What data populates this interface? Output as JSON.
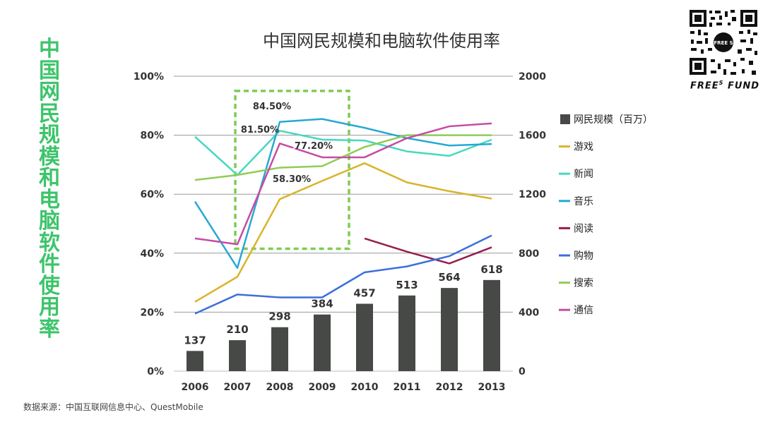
{
  "side_title": "中国网民规模和电脑软件使用率",
  "source": "数据来源：中国互联网信息中心、QuestMobile",
  "logo": {
    "badge": "FREE S",
    "brand": "FREE",
    "brand_sup": "S",
    "brand_rest": " FUND"
  },
  "chart_data": {
    "type": "bar+line",
    "title": "中国网民规模和电脑软件使用率",
    "categories": [
      "2006",
      "2007",
      "2008",
      "2009",
      "2010",
      "2011",
      "2012",
      "2013"
    ],
    "left_axis": {
      "ticks": [
        "0%",
        "20%",
        "40%",
        "60%",
        "80%",
        "100%"
      ],
      "range": [
        0,
        100
      ],
      "unit": "%"
    },
    "right_axis": {
      "ticks": [
        "0",
        "400",
        "800",
        "1200",
        "1600",
        "2000"
      ],
      "range": [
        0,
        2000
      ]
    },
    "bar_series": {
      "name": "网民规模（百万）",
      "color": "#464946",
      "values": [
        137,
        210,
        298,
        384,
        457,
        513,
        564,
        618
      ]
    },
    "line_series": [
      {
        "name": "游戏",
        "color": "#d9b42a",
        "values": [
          23.5,
          32,
          58.3,
          64.5,
          70.5,
          64,
          61,
          58.5
        ]
      },
      {
        "name": "新闻",
        "color": "#44d9c0",
        "values": [
          79.5,
          66.5,
          81.5,
          78.5,
          78.2,
          74.5,
          73,
          78.5
        ]
      },
      {
        "name": "音乐",
        "color": "#27a8d6",
        "values": [
          57.5,
          35,
          84.5,
          85.5,
          82.5,
          79,
          76.5,
          77
        ]
      },
      {
        "name": "阅读",
        "color": "#961e4e",
        "values": [
          null,
          null,
          null,
          null,
          45,
          40.5,
          36.5,
          42
        ]
      },
      {
        "name": "购物",
        "color": "#3c6fdc",
        "values": [
          19.5,
          26,
          25,
          25,
          33.5,
          35.5,
          39,
          46
        ]
      },
      {
        "name": "搜索",
        "color": "#8fcc57",
        "values": [
          64.8,
          66.5,
          69,
          69.5,
          76,
          80,
          80,
          80
        ]
      },
      {
        "name": "通信",
        "color": "#c64ba6",
        "values": [
          45,
          43,
          77.2,
          72.5,
          72.5,
          79,
          83,
          84
        ]
      }
    ],
    "annotations": [
      "84.50%",
      "81.50%",
      "77.20%",
      "58.30%"
    ],
    "highlight": {
      "from": "2007",
      "to": "2009",
      "color": "#7dcc55"
    }
  }
}
